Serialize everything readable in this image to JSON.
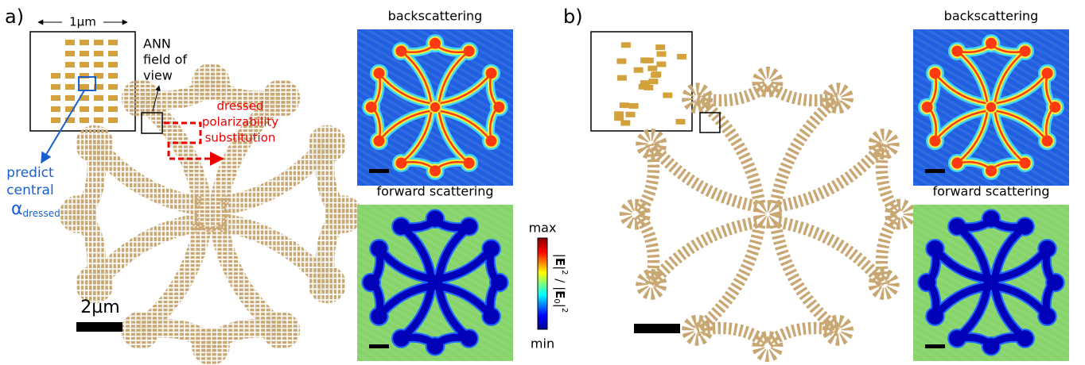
{
  "panel_a": {
    "label": "a)",
    "scale_inset": "1µm",
    "ann_label": [
      "ANN",
      "field of",
      "view"
    ],
    "substitution_label": [
      "dressed",
      "polarizability",
      "substitution"
    ],
    "predict_label": [
      "predict",
      "central"
    ],
    "alpha_symbol": "α",
    "alpha_subscript": "dressed",
    "scale_bar": "2µm",
    "maps": [
      "backscattering",
      "forward scattering"
    ]
  },
  "colorbar": {
    "max": "max",
    "min": "min",
    "label_parts": [
      "|",
      "E",
      "|",
      "2",
      " / |",
      "E",
      "0",
      "|",
      "2"
    ]
  },
  "panel_b": {
    "label": "b)",
    "maps": [
      "backscattering",
      "forward scattering"
    ]
  }
}
